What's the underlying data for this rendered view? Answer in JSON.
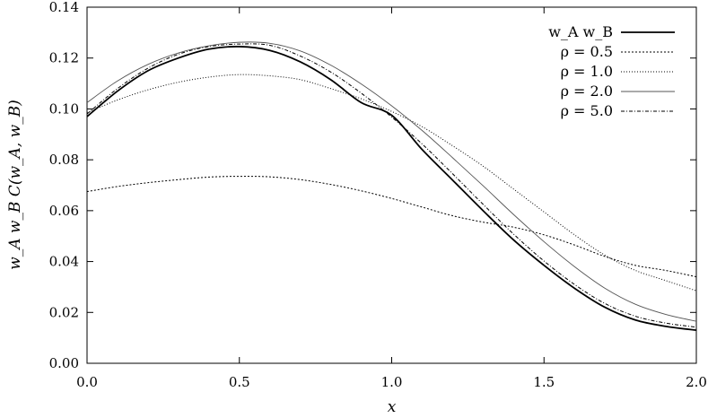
{
  "chart_data": {
    "type": "line",
    "xlabel": "x",
    "ylabel": "w_A w_B C(w_A, w_B)",
    "xlim": [
      0.0,
      2.0
    ],
    "ylim": [
      0.0,
      0.14
    ],
    "xticks": [
      "0.0",
      "0.5",
      "1.0",
      "1.5",
      "2.0"
    ],
    "yticks": [
      "0.00",
      "0.02",
      "0.04",
      "0.06",
      "0.08",
      "0.10",
      "0.12",
      "0.14"
    ],
    "grid": false,
    "legend_position": "top-right",
    "series": [
      {
        "name": "w_A w_B",
        "style": "solid-bold",
        "points": [
          [
            0.0,
            0.097
          ],
          [
            0.1,
            0.107
          ],
          [
            0.2,
            0.115
          ],
          [
            0.3,
            0.12
          ],
          [
            0.4,
            0.1235
          ],
          [
            0.5,
            0.1245
          ],
          [
            0.6,
            0.123
          ],
          [
            0.7,
            0.1185
          ],
          [
            0.8,
            0.1115
          ],
          [
            0.9,
            0.1025
          ],
          [
            1.0,
            0.0975
          ],
          [
            1.1,
            0.084
          ],
          [
            1.2,
            0.072
          ],
          [
            1.3,
            0.06
          ],
          [
            1.4,
            0.0485
          ],
          [
            1.5,
            0.0385
          ],
          [
            1.6,
            0.0295
          ],
          [
            1.7,
            0.022
          ],
          [
            1.8,
            0.017
          ],
          [
            1.9,
            0.0145
          ],
          [
            2.0,
            0.013
          ]
        ]
      },
      {
        "name": "ρ = 0.5",
        "style": "dotted-sparse",
        "points": [
          [
            0.0,
            0.0675
          ],
          [
            0.1,
            0.0695
          ],
          [
            0.2,
            0.071
          ],
          [
            0.3,
            0.0722
          ],
          [
            0.4,
            0.0732
          ],
          [
            0.5,
            0.0735
          ],
          [
            0.6,
            0.0733
          ],
          [
            0.7,
            0.0722
          ],
          [
            0.8,
            0.0703
          ],
          [
            0.9,
            0.0678
          ],
          [
            1.0,
            0.0648
          ],
          [
            1.1,
            0.0614
          ],
          [
            1.2,
            0.058
          ],
          [
            1.3,
            0.0555
          ],
          [
            1.4,
            0.0535
          ],
          [
            1.5,
            0.0505
          ],
          [
            1.6,
            0.0465
          ],
          [
            1.7,
            0.042
          ],
          [
            1.8,
            0.0385
          ],
          [
            1.9,
            0.0365
          ],
          [
            2.0,
            0.034
          ]
        ]
      },
      {
        "name": "ρ = 1.0",
        "style": "dotted",
        "points": [
          [
            0.0,
            0.0985
          ],
          [
            0.1,
            0.1035
          ],
          [
            0.2,
            0.1075
          ],
          [
            0.3,
            0.1105
          ],
          [
            0.4,
            0.1125
          ],
          [
            0.5,
            0.1135
          ],
          [
            0.6,
            0.113
          ],
          [
            0.7,
            0.1115
          ],
          [
            0.8,
            0.108
          ],
          [
            0.9,
            0.104
          ],
          [
            1.0,
            0.099
          ],
          [
            1.1,
            0.093
          ],
          [
            1.2,
            0.0855
          ],
          [
            1.3,
            0.0775
          ],
          [
            1.4,
            0.0685
          ],
          [
            1.5,
            0.0595
          ],
          [
            1.6,
            0.0505
          ],
          [
            1.7,
            0.0425
          ],
          [
            1.8,
            0.0365
          ],
          [
            1.9,
            0.0325
          ],
          [
            2.0,
            0.0285
          ]
        ]
      },
      {
        "name": "ρ = 2.0",
        "style": "solid-thin-gray",
        "points": [
          [
            0.0,
            0.1025
          ],
          [
            0.1,
            0.111
          ],
          [
            0.2,
            0.1175
          ],
          [
            0.3,
            0.122
          ],
          [
            0.4,
            0.1248
          ],
          [
            0.5,
            0.1262
          ],
          [
            0.6,
            0.1258
          ],
          [
            0.7,
            0.1228
          ],
          [
            0.8,
            0.1172
          ],
          [
            0.9,
            0.1098
          ],
          [
            1.0,
            0.1012
          ],
          [
            1.1,
            0.0915
          ],
          [
            1.2,
            0.0808
          ],
          [
            1.3,
            0.0698
          ],
          [
            1.4,
            0.0585
          ],
          [
            1.5,
            0.0478
          ],
          [
            1.6,
            0.038
          ],
          [
            1.7,
            0.0295
          ],
          [
            1.8,
            0.0232
          ],
          [
            1.9,
            0.0192
          ],
          [
            2.0,
            0.0165
          ]
        ]
      },
      {
        "name": "ρ = 5.0",
        "style": "dash-dot",
        "points": [
          [
            0.0,
            0.098
          ],
          [
            0.1,
            0.108
          ],
          [
            0.2,
            0.116
          ],
          [
            0.3,
            0.1215
          ],
          [
            0.4,
            0.1245
          ],
          [
            0.5,
            0.1255
          ],
          [
            0.6,
            0.125
          ],
          [
            0.7,
            0.1208
          ],
          [
            0.8,
            0.1145
          ],
          [
            0.9,
            0.1062
          ],
          [
            1.0,
            0.0968
          ],
          [
            1.1,
            0.0862
          ],
          [
            1.2,
            0.0745
          ],
          [
            1.3,
            0.0625
          ],
          [
            1.4,
            0.0508
          ],
          [
            1.5,
            0.0402
          ],
          [
            1.6,
            0.031
          ],
          [
            1.7,
            0.0235
          ],
          [
            1.8,
            0.0185
          ],
          [
            1.9,
            0.0158
          ],
          [
            2.0,
            0.0142
          ]
        ]
      }
    ]
  }
}
